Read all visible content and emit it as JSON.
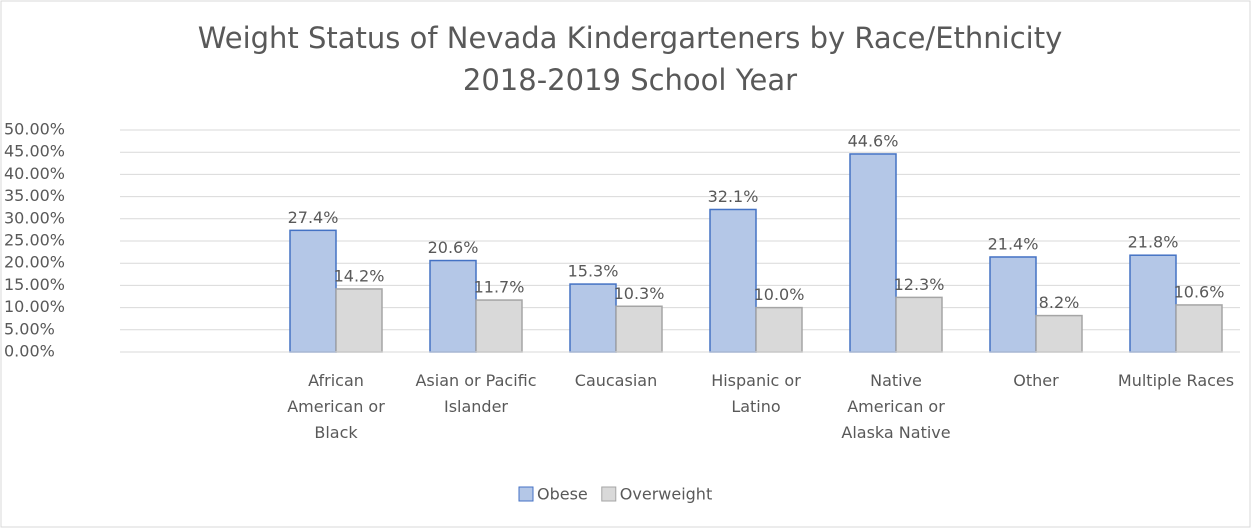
{
  "chart_data": {
    "type": "bar",
    "title": "Weight Status of Nevada Kindergarteners by Race/Ethnicity",
    "subtitle": "2018-2019 School Year",
    "categories": [
      null,
      "African American or Black",
      "Asian or Pacific Islander",
      "Caucasian",
      "Hispanic or Latino",
      "Native American or Alaska Native",
      "Other",
      "Multiple Races"
    ],
    "series": [
      {
        "name": "Obese",
        "color": "#b4c7e7",
        "values": [
          null,
          27.4,
          20.6,
          15.3,
          32.1,
          44.6,
          21.4,
          21.8
        ],
        "value_labels": [
          null,
          "27.4%",
          "20.6%",
          "15.3%",
          "32.1%",
          "44.6%",
          "21.4%",
          "21.8%"
        ]
      },
      {
        "name": "Overweight",
        "color": "#d9d9d9",
        "values": [
          null,
          14.2,
          11.7,
          10.3,
          10.0,
          12.3,
          8.2,
          10.6
        ],
        "value_labels": [
          null,
          "14.2%",
          "11.7%",
          "10.3%",
          "10.0%",
          "12.3%",
          "8.2%",
          "10.6%"
        ]
      }
    ],
    "ylim": [
      0,
      50
    ],
    "yticks": [
      {
        "value": 0,
        "label": "0.00%"
      },
      {
        "value": 5,
        "label": "5.00%"
      },
      {
        "value": 10,
        "label": "10.00%"
      },
      {
        "value": 15,
        "label": "15.00%"
      },
      {
        "value": 20,
        "label": "20.00%"
      },
      {
        "value": 25,
        "label": "25.00%"
      },
      {
        "value": 30,
        "label": "30.00%"
      },
      {
        "value": 35,
        "label": "35.00%"
      },
      {
        "value": 40,
        "label": "40.00%"
      },
      {
        "value": 45,
        "label": "45.00%"
      },
      {
        "value": 50,
        "label": "50.00%"
      }
    ],
    "grid": true,
    "legend": "bottom"
  }
}
